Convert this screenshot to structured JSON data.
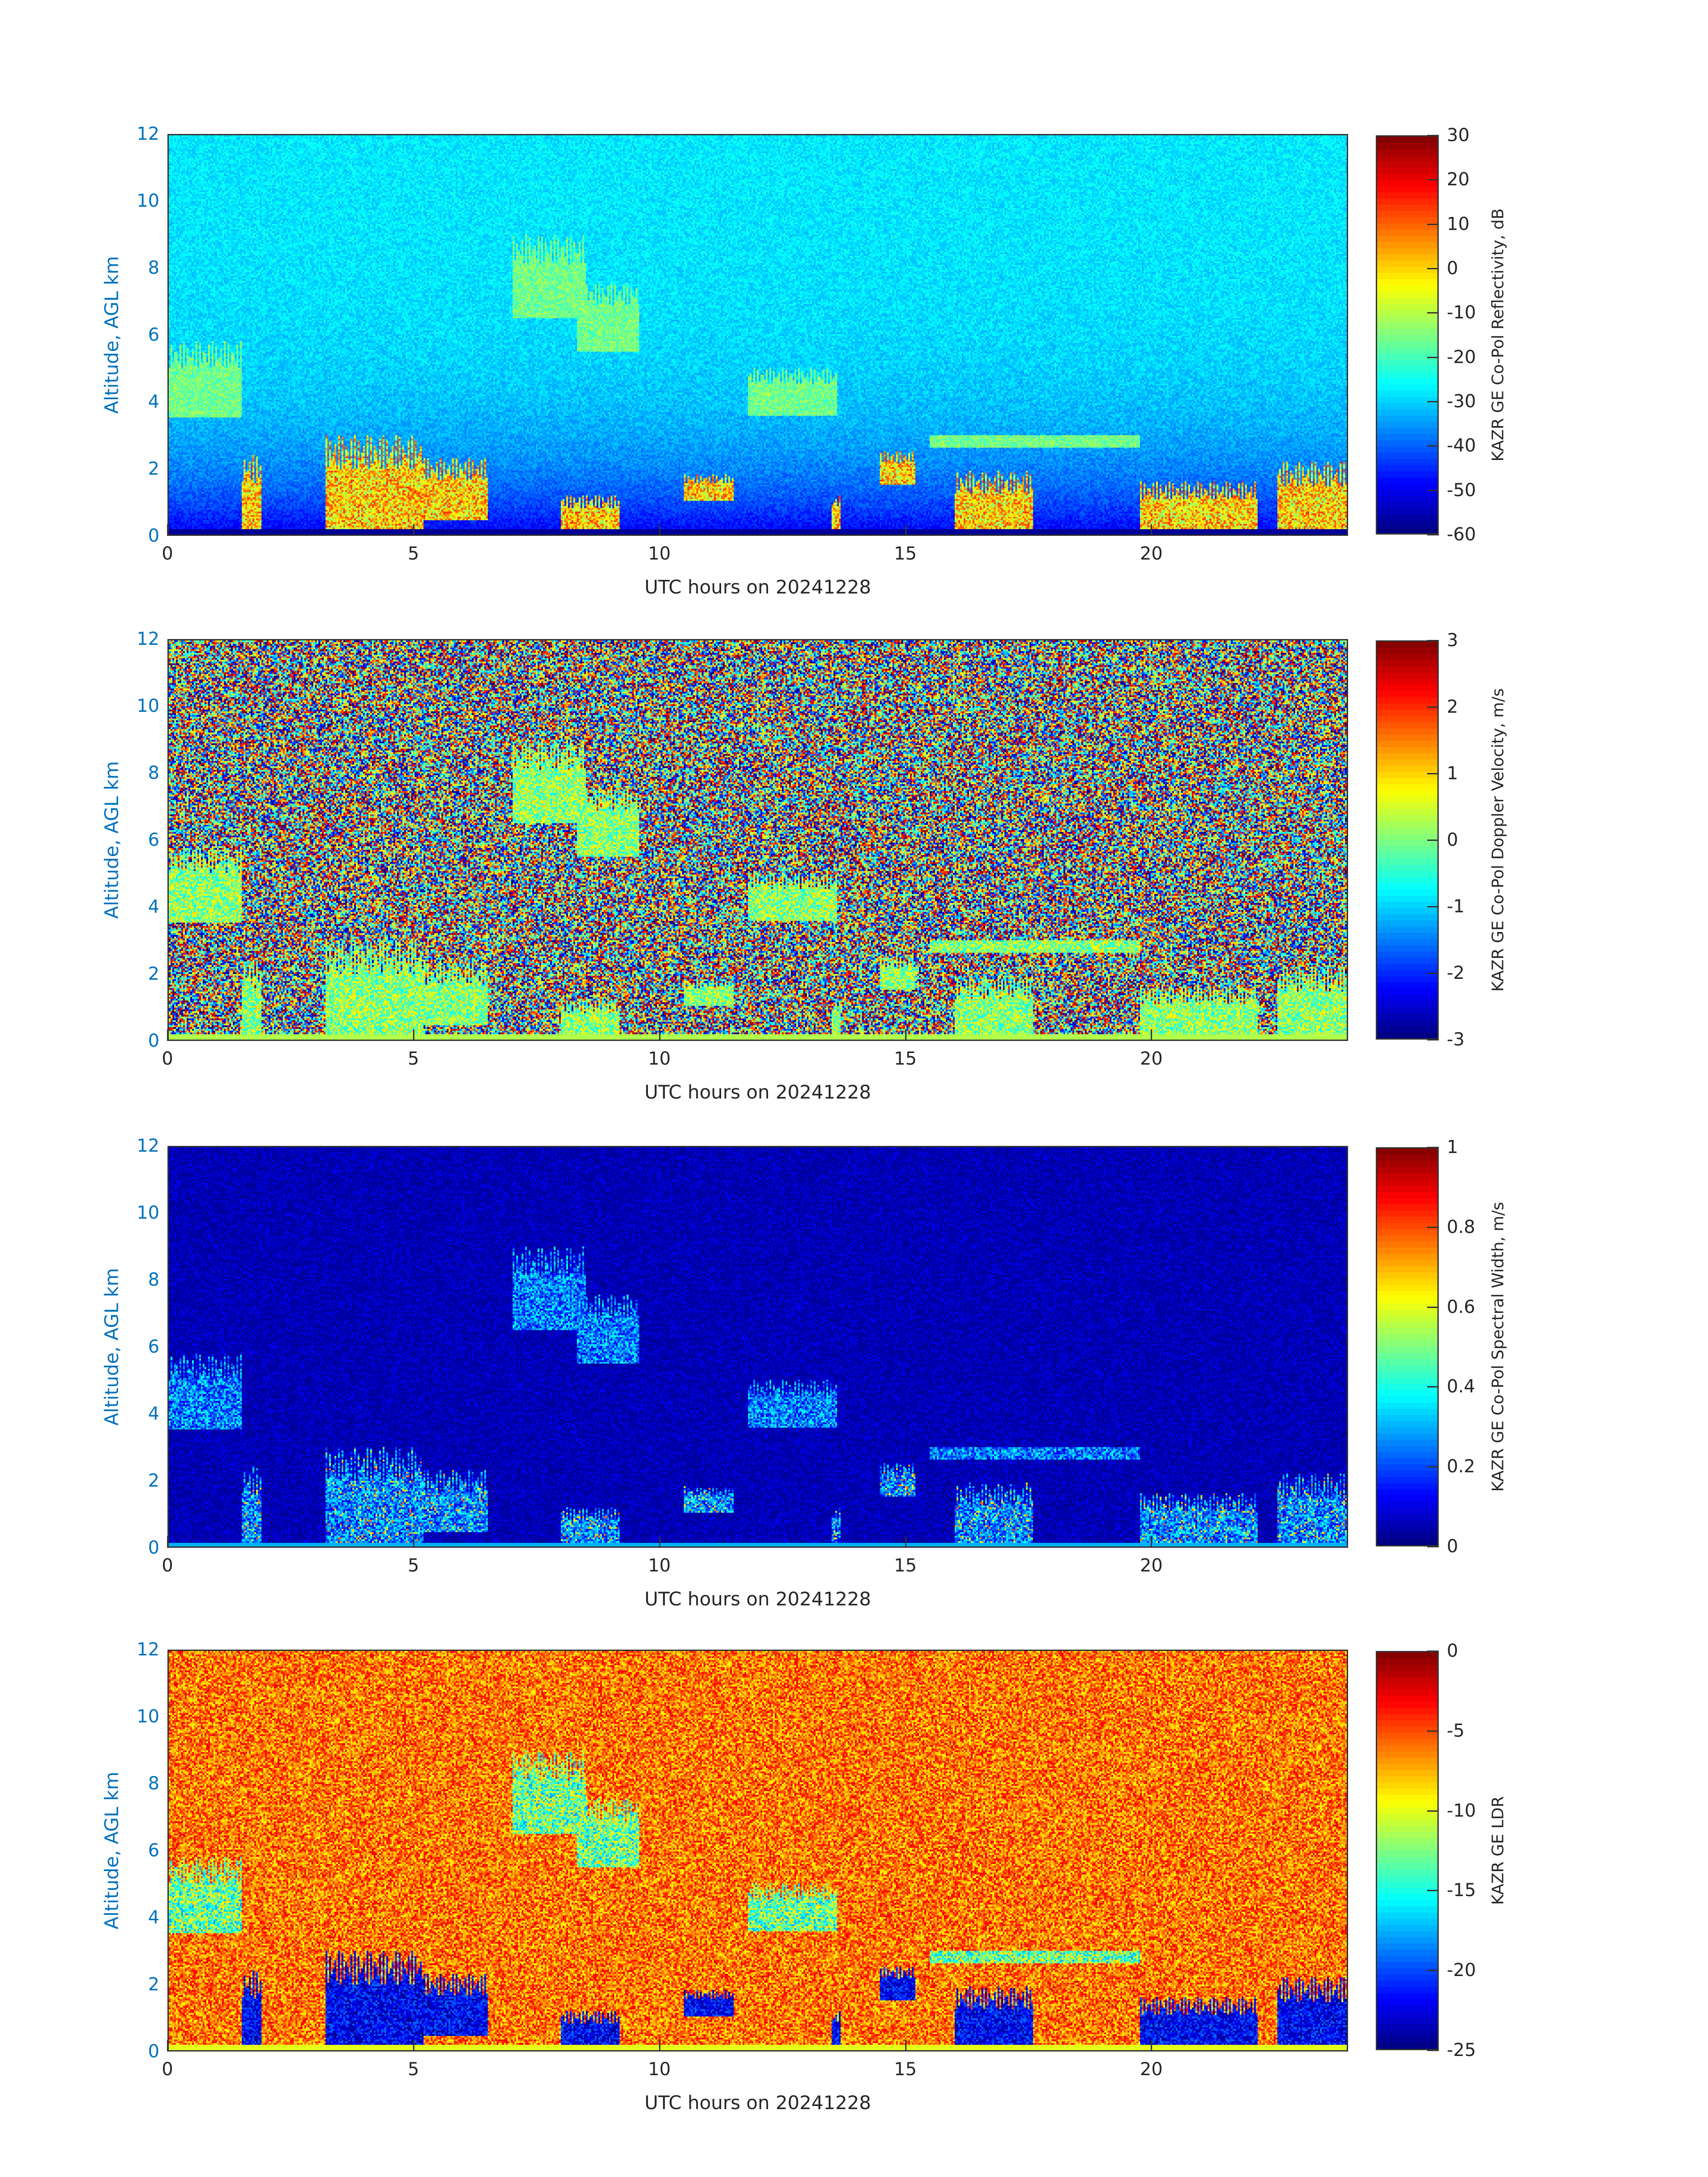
{
  "chart_data": [
    {
      "type": "heatmap",
      "xlabel": "UTC hours on 20241228",
      "ylabel": "Altitude, AGL km",
      "xlim": [
        0,
        24
      ],
      "ylim": [
        0,
        12
      ],
      "xticks": [
        "0",
        "5",
        "10",
        "15",
        "20"
      ],
      "yticks": [
        "0",
        "2",
        "4",
        "6",
        "8",
        "10",
        "12"
      ],
      "colormap": "jet",
      "colorbar": {
        "label": "KAZR GE Co-Pol Reflectivity, dB",
        "range": [
          -60,
          30
        ],
        "ticks": [
          "30",
          "20",
          "10",
          "0",
          "-10",
          "-20",
          "-30",
          "-40",
          "-50",
          "-60"
        ]
      },
      "field": "reflectivity"
    },
    {
      "type": "heatmap",
      "xlabel": "UTC hours on 20241228",
      "ylabel": "Altitude, AGL km",
      "xlim": [
        0,
        24
      ],
      "ylim": [
        0,
        12
      ],
      "xticks": [
        "0",
        "5",
        "10",
        "15",
        "20"
      ],
      "yticks": [
        "0",
        "2",
        "4",
        "6",
        "8",
        "10",
        "12"
      ],
      "colormap": "jet",
      "colorbar": {
        "label": "KAZR GE Co-Pol Doppler Velocity, m/s",
        "range": [
          -3,
          3
        ],
        "ticks": [
          "3",
          "2",
          "1",
          "0",
          "-1",
          "-2",
          "-3"
        ]
      },
      "field": "velocity"
    },
    {
      "type": "heatmap",
      "xlabel": "UTC hours on 20241228",
      "ylabel": "Altitude, AGL km",
      "xlim": [
        0,
        24
      ],
      "ylim": [
        0,
        12
      ],
      "xticks": [
        "0",
        "5",
        "10",
        "15",
        "20"
      ],
      "yticks": [
        "0",
        "2",
        "4",
        "6",
        "8",
        "10",
        "12"
      ],
      "colormap": "jet",
      "colorbar": {
        "label": "KAZR GE Co-Pol Spectral Width, m/s",
        "range": [
          0,
          1
        ],
        "ticks": [
          "1",
          "0.8",
          "0.6",
          "0.4",
          "0.2",
          "0"
        ]
      },
      "field": "width"
    },
    {
      "type": "heatmap",
      "xlabel": "UTC hours on 20241228",
      "ylabel": "Altitude, AGL km",
      "xlim": [
        0,
        24
      ],
      "ylim": [
        0,
        12
      ],
      "xticks": [
        "0",
        "5",
        "10",
        "15",
        "20"
      ],
      "yticks": [
        "0",
        "2",
        "4",
        "6",
        "8",
        "10",
        "12"
      ],
      "colormap": "jet",
      "colorbar": {
        "label": "KAZR GE LDR",
        "range": [
          -25,
          0
        ],
        "ticks": [
          "0",
          "-5",
          "-10",
          "-15",
          "-20",
          "-25"
        ]
      },
      "field": "ldr"
    }
  ],
  "cloud_features_hours_km": [
    {
      "t": [
        0,
        1.5
      ],
      "z": [
        3.5,
        5.8
      ],
      "kind": "mid"
    },
    {
      "t": [
        1.5,
        1.9
      ],
      "z": [
        0,
        2.4
      ],
      "kind": "low"
    },
    {
      "t": [
        3.2,
        5.2
      ],
      "z": [
        0,
        3.0
      ],
      "kind": "low"
    },
    {
      "t": [
        5.0,
        6.5
      ],
      "z": [
        0.4,
        2.3
      ],
      "kind": "low"
    },
    {
      "t": [
        7.0,
        8.5
      ],
      "z": [
        6.5,
        9.0
      ],
      "kind": "high"
    },
    {
      "t": [
        8.3,
        9.6
      ],
      "z": [
        5.5,
        7.6
      ],
      "kind": "high"
    },
    {
      "t": [
        8.0,
        9.2
      ],
      "z": [
        0,
        1.2
      ],
      "kind": "low"
    },
    {
      "t": [
        10.5,
        11.5
      ],
      "z": [
        1.0,
        1.8
      ],
      "kind": "low"
    },
    {
      "t": [
        11.8,
        13.6
      ],
      "z": [
        3.6,
        5.0
      ],
      "kind": "mid"
    },
    {
      "t": [
        13.5,
        13.7
      ],
      "z": [
        0,
        1.2
      ],
      "kind": "low"
    },
    {
      "t": [
        14.5,
        15.2
      ],
      "z": [
        1.5,
        2.5
      ],
      "kind": "low"
    },
    {
      "t": [
        15.5,
        19.8
      ],
      "z": [
        2.6,
        3.0
      ],
      "kind": "thin"
    },
    {
      "t": [
        16.0,
        17.6
      ],
      "z": [
        0,
        1.9
      ],
      "kind": "low"
    },
    {
      "t": [
        19.8,
        22.2
      ],
      "z": [
        0,
        1.6
      ],
      "kind": "low"
    },
    {
      "t": [
        22.6,
        24.0
      ],
      "z": [
        0,
        2.2
      ],
      "kind": "low"
    }
  ]
}
